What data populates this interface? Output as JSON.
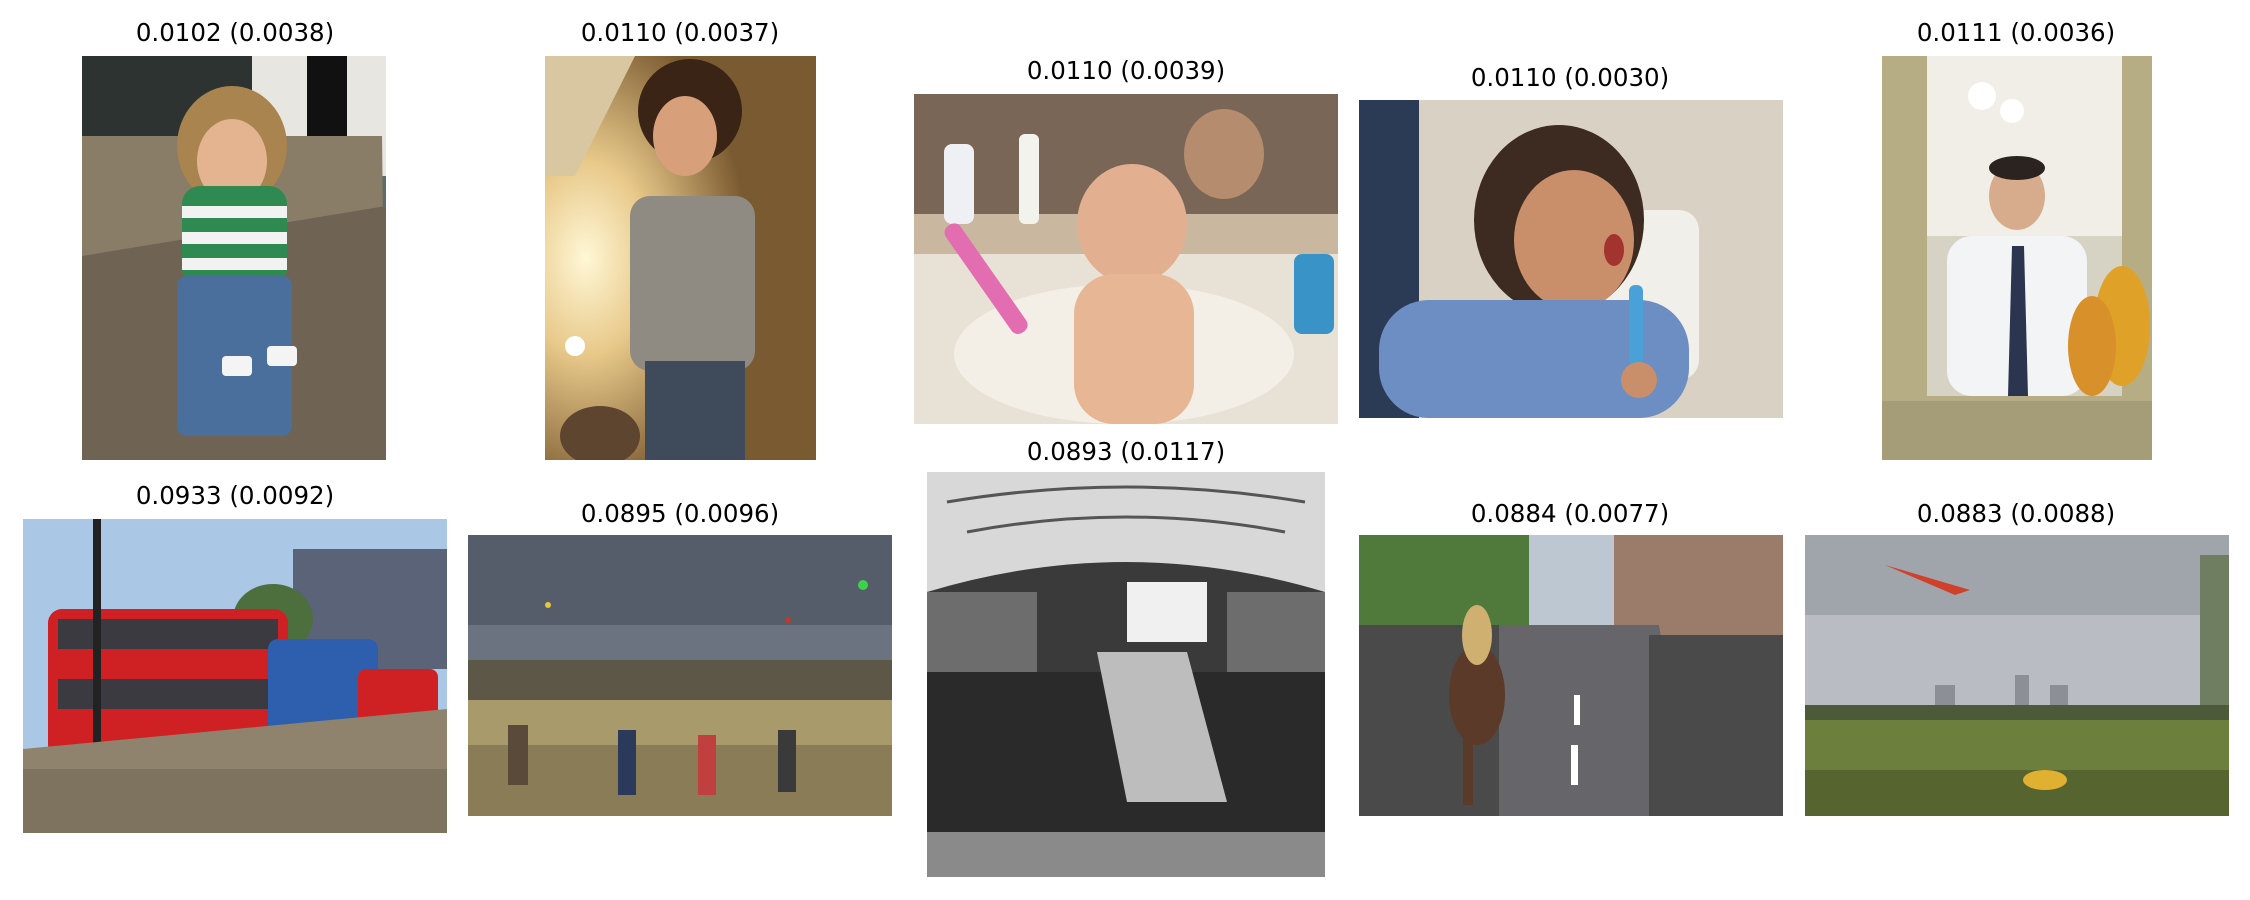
{
  "grid": {
    "rows": [
      {
        "row_index": 1,
        "items": [
          {
            "caption": "0.0102 (0.0038)",
            "subject": "boy with curly hair holding game controllers on a couch"
          },
          {
            "caption": "0.0110 (0.0037)",
            "subject": "young man with curly hair holding a controller near a lamp"
          },
          {
            "caption": "0.0110 (0.0039)",
            "subject": "baby in a sink holding a pink toothbrush"
          },
          {
            "caption": "0.0110 (0.0030)",
            "subject": "toddler in blue sweater brushing teeth"
          },
          {
            "caption": "0.0111 (0.0036)",
            "subject": "man in a mirror adjusting his tie"
          }
        ]
      },
      {
        "row_index": 2,
        "items": [
          {
            "caption": "0.0933 (0.0092)",
            "subject": "red and blue double decker buses by a stone wall"
          },
          {
            "caption": "0.0895 (0.0096)",
            "subject": "crowd of people flying kites in a park"
          },
          {
            "caption": "0.0893 (0.0117)",
            "subject": "black and white crowd in a train station hall"
          },
          {
            "caption": "0.0884 (0.0077)",
            "subject": "crowd on a street with a rider on a horse"
          },
          {
            "caption": "0.0883 (0.0088)",
            "subject": "crowd in a park with kites and city skyline"
          }
        ]
      }
    ]
  },
  "colors": {
    "background": "#ffffff",
    "caption_text": "#000000"
  }
}
